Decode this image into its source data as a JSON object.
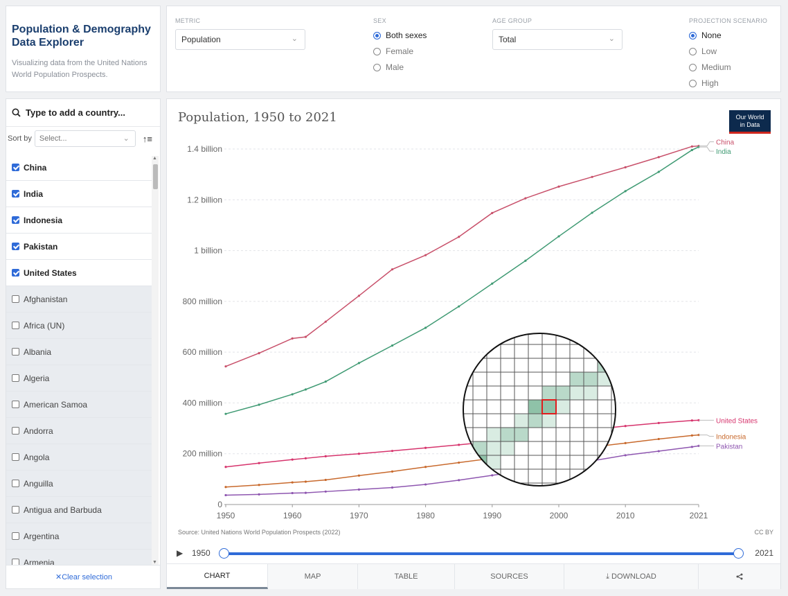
{
  "header": {
    "title": "Population & Demography Data Explorer",
    "subtitle": "Visualizing data from the United Nations World Population Prospects."
  },
  "controls": {
    "metric": {
      "label": "METRIC",
      "value": "Population"
    },
    "sex": {
      "label": "SEX",
      "options": [
        "Both sexes",
        "Female",
        "Male"
      ],
      "selected": "Both sexes"
    },
    "age_group": {
      "label": "AGE GROUP",
      "value": "Total"
    },
    "projection": {
      "label": "PROJECTION SCENARIO",
      "options": [
        "None",
        "Low",
        "Medium",
        "High"
      ],
      "selected": "None"
    }
  },
  "sidebar": {
    "search_placeholder": "Type to add a country...",
    "sort_label": "Sort by",
    "sort_placeholder": "Select...",
    "items": [
      {
        "label": "China",
        "checked": true
      },
      {
        "label": "India",
        "checked": true
      },
      {
        "label": "Indonesia",
        "checked": true
      },
      {
        "label": "Pakistan",
        "checked": true
      },
      {
        "label": "United States",
        "checked": true
      },
      {
        "label": "Afghanistan",
        "checked": false
      },
      {
        "label": "Africa (UN)",
        "checked": false
      },
      {
        "label": "Albania",
        "checked": false
      },
      {
        "label": "Algeria",
        "checked": false
      },
      {
        "label": "American Samoa",
        "checked": false
      },
      {
        "label": "Andorra",
        "checked": false
      },
      {
        "label": "Angola",
        "checked": false
      },
      {
        "label": "Anguilla",
        "checked": false
      },
      {
        "label": "Antigua and Barbuda",
        "checked": false
      },
      {
        "label": "Argentina",
        "checked": false
      },
      {
        "label": "Armenia",
        "checked": false
      }
    ],
    "clear_label": "Clear selection"
  },
  "chart_header": {
    "title": "Population, 1950 to 2021",
    "logo_line1": "Our World",
    "logo_line2": "in Data"
  },
  "chart_data": {
    "type": "line",
    "title": "Population, 1950 to 2021",
    "x": [
      1950,
      1955,
      1960,
      1962,
      1965,
      1970,
      1975,
      1980,
      1985,
      1990,
      1995,
      2000,
      2005,
      2010,
      2015,
      2020,
      2021
    ],
    "y_ticks": [
      0,
      200,
      400,
      600,
      800,
      1000,
      1200,
      1400
    ],
    "y_tick_labels": [
      "0",
      "200 million",
      "400 million",
      "600 million",
      "800 million",
      "1 billion",
      "1.2 billion",
      "1.4 billion"
    ],
    "x_ticks": [
      1950,
      1960,
      1970,
      1980,
      1990,
      2000,
      2010,
      2021
    ],
    "xlim": [
      1950,
      2021
    ],
    "ylim": [
      0,
      1400
    ],
    "grid": true,
    "unit": "million",
    "series": [
      {
        "name": "China",
        "color": "#c8506a",
        "values": [
          544,
          596,
          654,
          660,
          720,
          822,
          926,
          982,
          1054,
          1148,
          1206,
          1252,
          1290,
          1328,
          1368,
          1410,
          1412
        ]
      },
      {
        "name": "India",
        "color": "#3f9a73",
        "values": [
          357,
          393,
          434,
          453,
          484,
          557,
          626,
          696,
          780,
          870,
          960,
          1056,
          1149,
          1234,
          1310,
          1396,
          1408
        ]
      },
      {
        "name": "United States",
        "color": "#d6336c",
        "values": [
          148,
          163,
          177,
          182,
          190,
          200,
          211,
          223,
          235,
          248,
          265,
          282,
          295,
          309,
          321,
          331,
          332
        ]
      },
      {
        "name": "Indonesia",
        "color": "#c8692c",
        "values": [
          69,
          77,
          87,
          90,
          97,
          114,
          130,
          148,
          165,
          182,
          197,
          211,
          226,
          242,
          258,
          272,
          274
        ]
      },
      {
        "name": "Pakistan",
        "color": "#8e56b0",
        "values": [
          37,
          40,
          45,
          46,
          51,
          59,
          67,
          79,
          96,
          115,
          134,
          154,
          172,
          194,
          210,
          227,
          231
        ]
      }
    ]
  },
  "footer": {
    "source": "Source: United Nations World Population Prospects (2022)",
    "license": "CC BY",
    "timeline_start": "1950",
    "timeline_end": "2021"
  },
  "tabs": [
    "CHART",
    "MAP",
    "TABLE",
    "SOURCES",
    "DOWNLOAD"
  ],
  "icons": [
    "search-icon",
    "sort-icon",
    "play-icon",
    "download-icon",
    "share-icon",
    "checkbox-icon",
    "radio-icon",
    "chevron-down-icon",
    "close-icon"
  ]
}
